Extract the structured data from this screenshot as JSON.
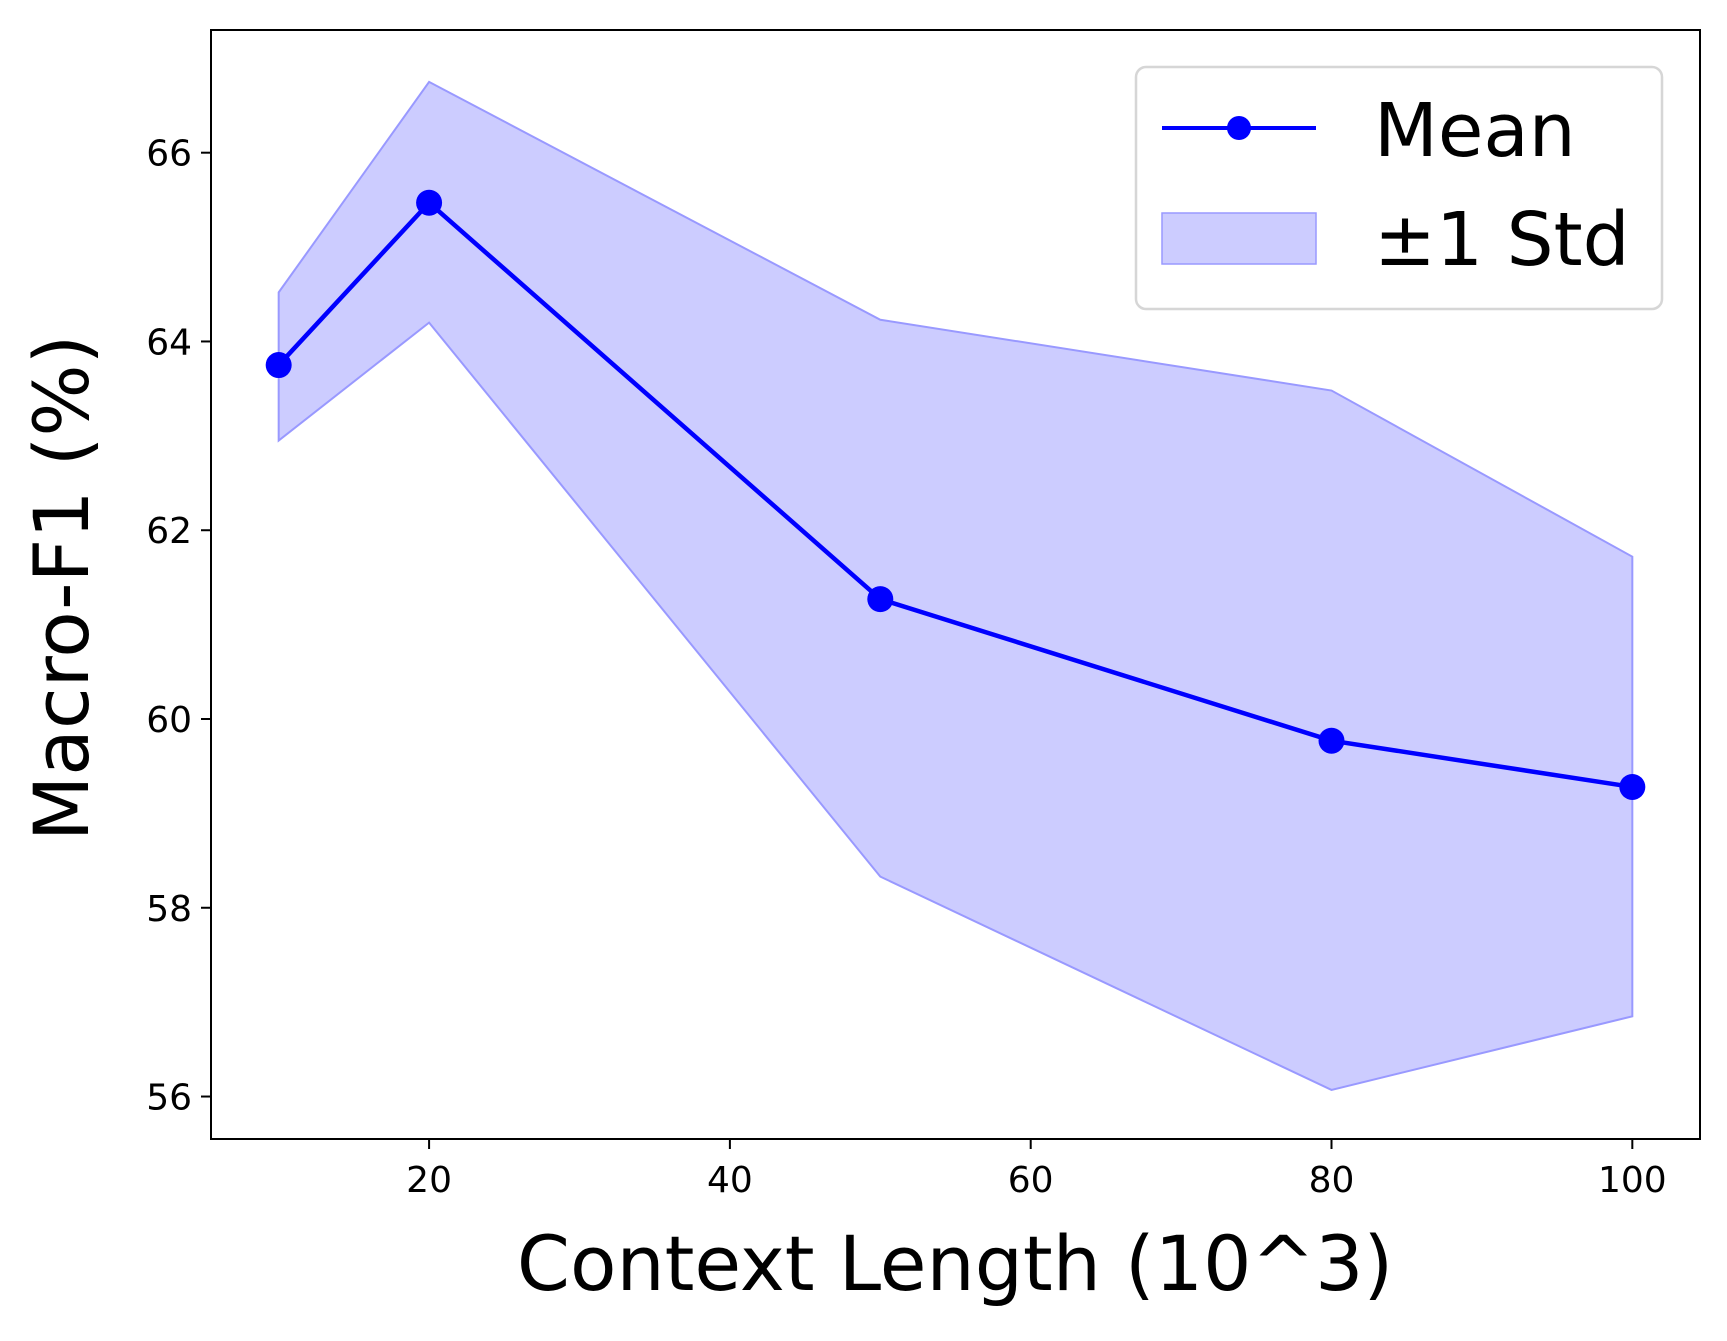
{
  "chart_data": {
    "type": "line",
    "title": "",
    "xlabel": "Context Length (10^3)",
    "ylabel": "Macro-F1 (%)",
    "x": [
      10,
      20,
      50,
      80,
      100
    ],
    "series": [
      {
        "name": "Mean",
        "values": [
          63.75,
          65.47,
          61.27,
          59.77,
          59.28
        ],
        "color": "#0000ff"
      }
    ],
    "band": {
      "name": "±1 Std",
      "lower": [
        62.95,
        64.2,
        58.33,
        56.07,
        56.85
      ],
      "upper": [
        64.52,
        66.75,
        64.23,
        63.48,
        61.72
      ],
      "color": "#ccccff",
      "edge_color": "#9999ff"
    },
    "xlim": [
      5.5,
      104.5
    ],
    "ylim": [
      55.55,
      67.3
    ],
    "xticks": [
      20,
      40,
      60,
      80,
      100
    ],
    "yticks": [
      56,
      58,
      60,
      62,
      64,
      66
    ],
    "legend_position": "top-right",
    "legend": [
      "Mean",
      "±1 Std"
    ],
    "grid": false
  }
}
